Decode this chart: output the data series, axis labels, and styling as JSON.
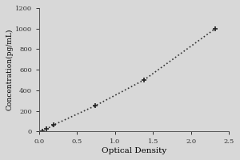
{
  "x_data": [
    0.047,
    0.1,
    0.19,
    0.74,
    1.38,
    2.32
  ],
  "y_data": [
    0,
    25,
    62.5,
    250,
    500,
    1000
  ],
  "xlabel": "Optical Density",
  "ylabel": "Concentration(pg/mL)",
  "xlim": [
    0,
    2.5
  ],
  "ylim": [
    0,
    1200
  ],
  "xticks": [
    0,
    0.5,
    1,
    1.5,
    2,
    2.5
  ],
  "yticks": [
    0,
    200,
    400,
    600,
    800,
    1000,
    1200
  ],
  "line_color": "#333333",
  "marker_color": "#222222",
  "marker": "+",
  "marker_size": 5,
  "marker_linewidth": 1.2,
  "line_style": ":",
  "line_width": 1.2,
  "bg_color": "#d8d8d8",
  "plot_bg_color": "#d8d8d8",
  "xlabel_fontsize": 7.5,
  "ylabel_fontsize": 6.5,
  "tick_fontsize": 6,
  "fig_width": 3.0,
  "fig_height": 2.0,
  "dpi": 100
}
